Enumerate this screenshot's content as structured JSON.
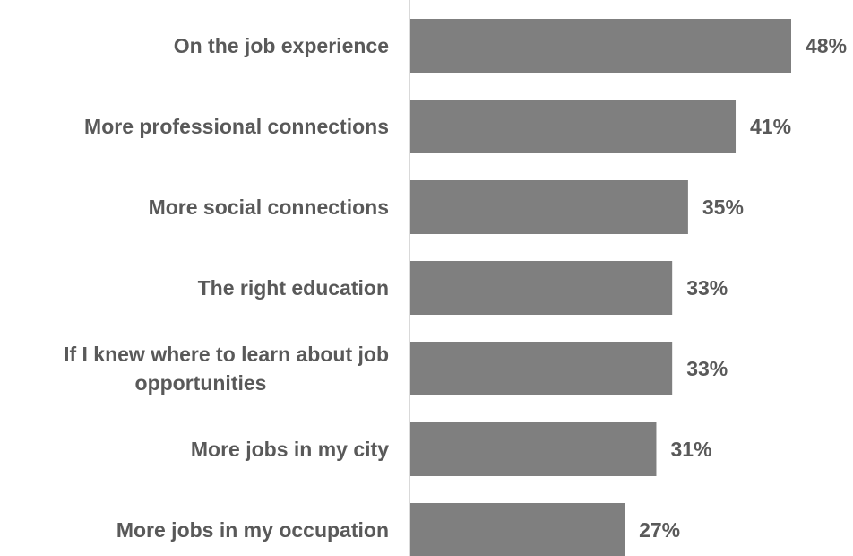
{
  "chart_data": {
    "type": "bar",
    "orientation": "horizontal",
    "categories": [
      [
        "On the job experience"
      ],
      [
        "More professional connections"
      ],
      [
        "More social connections"
      ],
      [
        "The right education"
      ],
      [
        "If I knew where to learn about job",
        "opportunities"
      ],
      [
        "More jobs in my city"
      ],
      [
        "More jobs in my occupation"
      ]
    ],
    "values": [
      48,
      41,
      35,
      33,
      33,
      31,
      27
    ],
    "value_labels": [
      "48%",
      "41%",
      "35%",
      "33%",
      "33%",
      "31%",
      "27%"
    ],
    "title": "",
    "xlabel": "",
    "ylabel": "",
    "xlim": [
      0,
      48
    ],
    "grid": false,
    "legend": "none",
    "colors": {
      "bar": "#7f7f7f",
      "text": "#595959",
      "axis": "#d9d9d9"
    }
  }
}
